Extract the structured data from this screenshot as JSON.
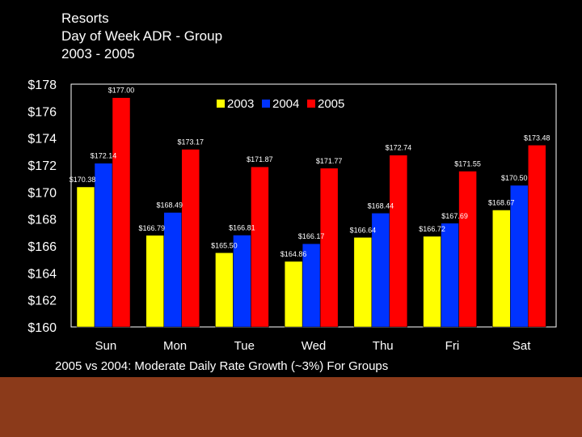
{
  "header": {
    "line1": "Resorts",
    "line2": "Day of Week ADR - Group",
    "line3": "2003 - 2005"
  },
  "caption": "2005 vs 2004: Moderate Daily Rate Growth (~3%) For Groups",
  "colors": {
    "background": "#000000",
    "plot_area": "#000000",
    "footer_band": "#8B3A1A",
    "series_2003": "#FFFF00",
    "series_2004": "#0033FF",
    "series_2005": "#FF0000"
  },
  "chart_data": {
    "type": "bar",
    "title": "Day of Week ADR - Group",
    "xlabel": "",
    "ylabel": "",
    "ylim": [
      160,
      178
    ],
    "ytick_step": 2,
    "ytick_labels": [
      "$160",
      "$162",
      "$164",
      "$166",
      "$168",
      "$170",
      "$172",
      "$174",
      "$176",
      "$178"
    ],
    "legend_position": "top-right",
    "categories": [
      "Sun",
      "Mon",
      "Tue",
      "Wed",
      "Thu",
      "Fri",
      "Sat"
    ],
    "series": [
      {
        "name": "2003",
        "values": [
          170.38,
          166.79,
          165.5,
          164.86,
          166.64,
          166.72,
          168.67
        ],
        "labels": [
          "$170.38",
          "$166.79",
          "$165.50",
          "$164.86",
          "$166.64",
          "$166.72",
          "$168.67"
        ]
      },
      {
        "name": "2004",
        "values": [
          172.14,
          168.49,
          166.81,
          166.17,
          168.44,
          167.69,
          170.5
        ],
        "labels": [
          "$172.14",
          "$168.49",
          "$166.81",
          "$166.17",
          "$168.44",
          "$167.69",
          "$170.50"
        ]
      },
      {
        "name": "2005",
        "values": [
          177.0,
          173.17,
          171.87,
          171.77,
          172.74,
          171.55,
          173.48
        ],
        "labels": [
          "$177.00",
          "$173.17",
          "$171.87",
          "$171.77",
          "$172.74",
          "$171.55",
          "$173.48"
        ]
      }
    ]
  }
}
